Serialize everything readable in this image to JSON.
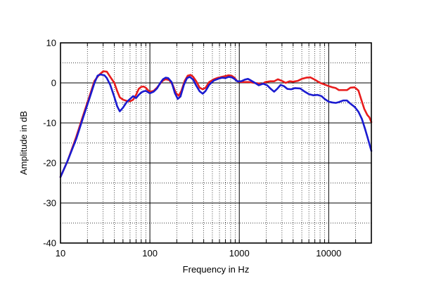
{
  "chart_data": {
    "type": "line",
    "title": "",
    "xlabel": "Frequency in Hz",
    "ylabel": "Amplitude in dB",
    "xscale": "log",
    "xlim": [
      10,
      30000
    ],
    "ylim": [
      -40,
      10
    ],
    "grid": true,
    "legend": "none",
    "x_tick_labels": [
      {
        "value": 10,
        "label": "10"
      },
      {
        "value": 100,
        "label": "100"
      },
      {
        "value": 1000,
        "label": "1000"
      },
      {
        "value": 10000,
        "label": "10000"
      }
    ],
    "y_tick_labels": [
      {
        "value": 10,
        "label": "10"
      },
      {
        "value": 0,
        "label": "0"
      },
      {
        "value": -10,
        "label": "-10"
      },
      {
        "value": -20,
        "label": "-20"
      },
      {
        "value": -30,
        "label": "-30"
      },
      {
        "value": -40,
        "label": "-40"
      }
    ],
    "series": [
      {
        "color": "#e81c1c",
        "points": [
          [
            10,
            -23.5
          ],
          [
            12,
            -19.5
          ],
          [
            15,
            -13.5
          ],
          [
            18,
            -8.0
          ],
          [
            21,
            -3.5
          ],
          [
            24,
            0.5
          ],
          [
            27,
            2.0
          ],
          [
            30,
            2.9
          ],
          [
            33,
            2.8
          ],
          [
            36,
            1.5
          ],
          [
            40,
            0.0
          ],
          [
            43,
            -2.0
          ],
          [
            46,
            -3.6
          ],
          [
            50,
            -4.2
          ],
          [
            55,
            -4.5
          ],
          [
            60,
            -4.6
          ],
          [
            65,
            -4.2
          ],
          [
            70,
            -3.0
          ],
          [
            75,
            -1.5
          ],
          [
            80,
            -1.0
          ],
          [
            85,
            -0.9
          ],
          [
            90,
            -1.2
          ],
          [
            95,
            -1.8
          ],
          [
            100,
            -2.2
          ],
          [
            110,
            -2.0
          ],
          [
            120,
            -1.2
          ],
          [
            130,
            -0.2
          ],
          [
            140,
            0.6
          ],
          [
            150,
            0.9
          ],
          [
            165,
            0.7
          ],
          [
            180,
            -0.5
          ],
          [
            195,
            -2.5
          ],
          [
            210,
            -3.2
          ],
          [
            225,
            -2.0
          ],
          [
            245,
            0.5
          ],
          [
            265,
            1.8
          ],
          [
            285,
            2.0
          ],
          [
            305,
            1.5
          ],
          [
            330,
            0.4
          ],
          [
            360,
            -1.2
          ],
          [
            390,
            -1.6
          ],
          [
            420,
            -1.2
          ],
          [
            460,
            0.2
          ],
          [
            520,
            0.9
          ],
          [
            580,
            1.3
          ],
          [
            640,
            1.5
          ],
          [
            700,
            1.7
          ],
          [
            760,
            1.9
          ],
          [
            820,
            1.8
          ],
          [
            880,
            1.3
          ],
          [
            950,
            0.4
          ],
          [
            1050,
            0.2
          ],
          [
            1150,
            0.2
          ],
          [
            1300,
            0.2
          ],
          [
            1450,
            0.0
          ],
          [
            1600,
            -0.1
          ],
          [
            1800,
            -0.3
          ],
          [
            1950,
            0.2
          ],
          [
            2200,
            0.4
          ],
          [
            2450,
            0.4
          ],
          [
            2700,
            0.9
          ],
          [
            3000,
            0.5
          ],
          [
            3300,
            0.0
          ],
          [
            3650,
            0.4
          ],
          [
            4000,
            0.3
          ],
          [
            4500,
            0.5
          ],
          [
            5000,
            1.0
          ],
          [
            5600,
            1.3
          ],
          [
            6200,
            1.4
          ],
          [
            7000,
            0.8
          ],
          [
            8000,
            0.0
          ],
          [
            9000,
            -0.4
          ],
          [
            10000,
            -0.8
          ],
          [
            11000,
            -1.1
          ],
          [
            12000,
            -1.3
          ],
          [
            13000,
            -1.8
          ],
          [
            14500,
            -1.8
          ],
          [
            16000,
            -1.8
          ],
          [
            17500,
            -1.2
          ],
          [
            19500,
            -1.1
          ],
          [
            21500,
            -1.9
          ],
          [
            23000,
            -4.0
          ],
          [
            25000,
            -6.5
          ],
          [
            27000,
            -8.0
          ],
          [
            28500,
            -8.6
          ],
          [
            30000,
            -9.8
          ]
        ]
      },
      {
        "color": "#1b1bd0",
        "points": [
          [
            10,
            -23.5
          ],
          [
            12,
            -19.5
          ],
          [
            15,
            -14.0
          ],
          [
            18,
            -8.5
          ],
          [
            21,
            -4.0
          ],
          [
            24,
            0.0
          ],
          [
            26,
            1.8
          ],
          [
            28,
            2.1
          ],
          [
            31,
            1.9
          ],
          [
            33,
            1.2
          ],
          [
            36,
            -0.5
          ],
          [
            40,
            -3.5
          ],
          [
            43,
            -5.8
          ],
          [
            46,
            -7.1
          ],
          [
            50,
            -6.2
          ],
          [
            55,
            -4.8
          ],
          [
            60,
            -4.0
          ],
          [
            65,
            -3.3
          ],
          [
            70,
            -3.8
          ],
          [
            75,
            -3.0
          ],
          [
            80,
            -2.4
          ],
          [
            85,
            -2.1
          ],
          [
            90,
            -2.0
          ],
          [
            95,
            -2.3
          ],
          [
            100,
            -2.6
          ],
          [
            110,
            -2.2
          ],
          [
            120,
            -1.4
          ],
          [
            130,
            -0.1
          ],
          [
            140,
            0.9
          ],
          [
            150,
            1.3
          ],
          [
            160,
            1.2
          ],
          [
            175,
            0.2
          ],
          [
            190,
            -2.5
          ],
          [
            205,
            -4.0
          ],
          [
            220,
            -3.4
          ],
          [
            240,
            -0.5
          ],
          [
            260,
            1.2
          ],
          [
            280,
            1.5
          ],
          [
            305,
            0.8
          ],
          [
            330,
            -0.7
          ],
          [
            360,
            -2.1
          ],
          [
            390,
            -2.7
          ],
          [
            420,
            -2.0
          ],
          [
            460,
            -0.5
          ],
          [
            520,
            0.6
          ],
          [
            580,
            1.0
          ],
          [
            640,
            1.3
          ],
          [
            700,
            1.2
          ],
          [
            760,
            1.5
          ],
          [
            820,
            1.4
          ],
          [
            880,
            1.0
          ],
          [
            950,
            0.4
          ],
          [
            1050,
            0.4
          ],
          [
            1150,
            0.8
          ],
          [
            1250,
            1.0
          ],
          [
            1350,
            0.6
          ],
          [
            1500,
            0.0
          ],
          [
            1650,
            -0.6
          ],
          [
            1850,
            -0.2
          ],
          [
            2050,
            -0.6
          ],
          [
            2250,
            -1.5
          ],
          [
            2450,
            -2.2
          ],
          [
            2650,
            -1.5
          ],
          [
            2900,
            -0.5
          ],
          [
            3150,
            -0.8
          ],
          [
            3450,
            -1.5
          ],
          [
            3800,
            -1.6
          ],
          [
            4200,
            -1.3
          ],
          [
            4800,
            -1.4
          ],
          [
            5400,
            -2.2
          ],
          [
            6000,
            -2.8
          ],
          [
            6700,
            -3.1
          ],
          [
            7500,
            -3.0
          ],
          [
            8300,
            -3.3
          ],
          [
            9000,
            -4.0
          ],
          [
            10000,
            -4.7
          ],
          [
            11000,
            -4.9
          ],
          [
            12000,
            -5.0
          ],
          [
            13000,
            -4.8
          ],
          [
            14500,
            -4.4
          ],
          [
            16000,
            -4.4
          ],
          [
            17500,
            -5.2
          ],
          [
            19500,
            -6.0
          ],
          [
            21500,
            -7.2
          ],
          [
            23500,
            -9.0
          ],
          [
            25500,
            -11.5
          ],
          [
            27500,
            -14.0
          ],
          [
            30000,
            -17.0
          ]
        ]
      }
    ]
  }
}
